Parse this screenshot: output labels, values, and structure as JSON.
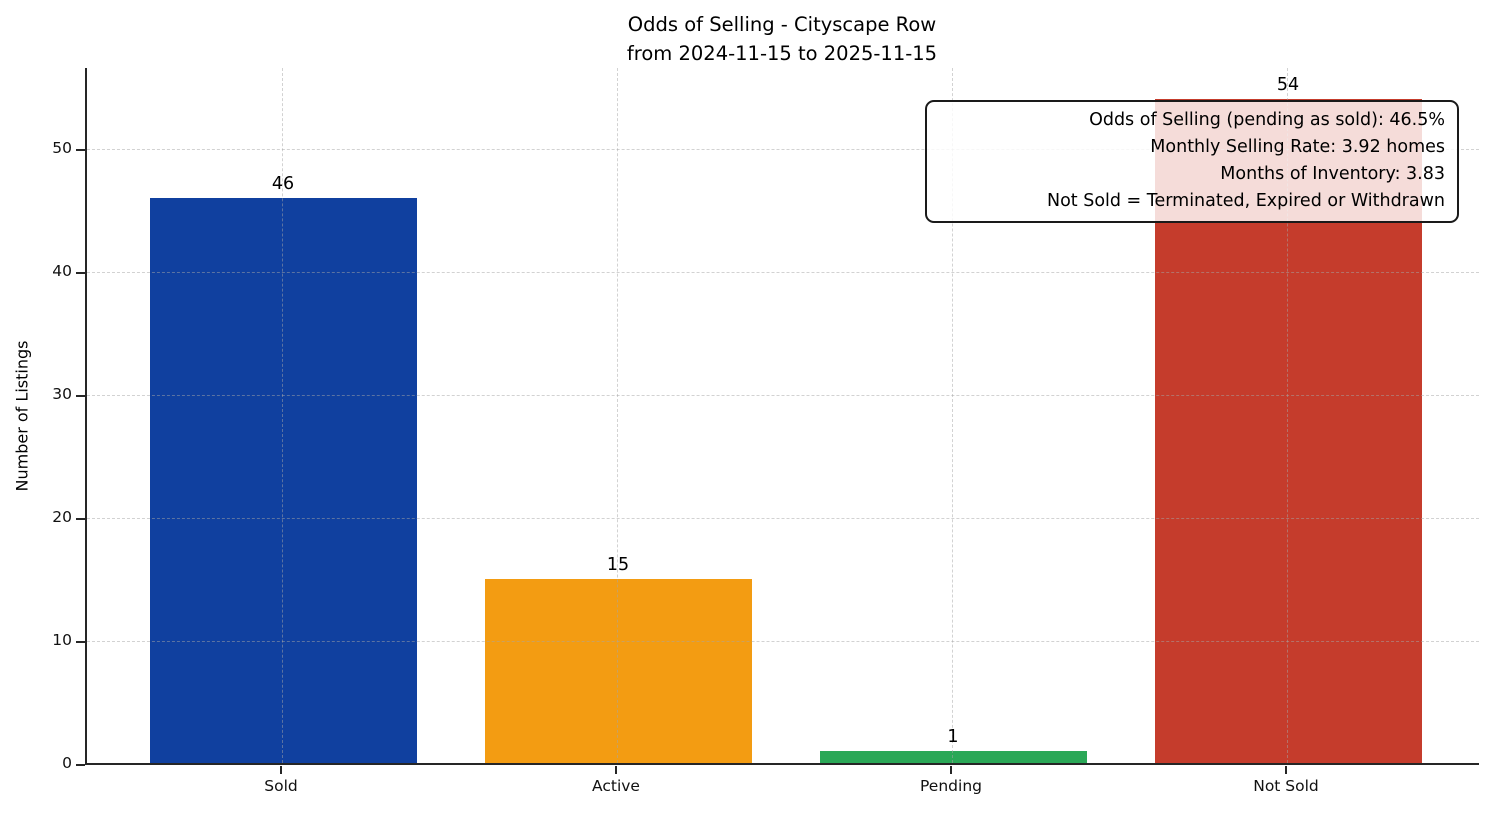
{
  "chart_data": {
    "type": "bar",
    "title": "Odds of Selling - Cityscape Row",
    "subtitle": "from 2024-11-15 to 2025-11-15",
    "categories": [
      "Sold",
      "Active",
      "Pending",
      "Not Sold"
    ],
    "values": [
      46,
      15,
      1,
      54
    ],
    "bar_value_labels": [
      "46",
      "15",
      "1",
      "54"
    ],
    "bar_colors": [
      "#10409f",
      "#f39c12",
      "#2aa857",
      "#c53c2c"
    ],
    "xlabel": "",
    "ylabel": "Number of Listings",
    "ylim": [
      0,
      56.7
    ],
    "yticks": [
      0,
      10,
      20,
      30,
      40,
      50
    ],
    "grid": {
      "style": "dashed",
      "axes": "both",
      "color": "#d9d9d9"
    },
    "legend": "none",
    "annotation": {
      "position": "top-right",
      "lines": [
        "Odds of Selling (pending as sold): 46.5%",
        "Monthly Selling Rate: 3.92 homes",
        "Months of Inventory: 3.83",
        "Not Sold = Terminated, Expired or Withdrawn"
      ]
    }
  },
  "colors": {
    "spine": "#262626",
    "text": "#000000",
    "annotation_border": "#1a1a1a",
    "annotation_background": "rgba(255,255,255,0.82)"
  }
}
